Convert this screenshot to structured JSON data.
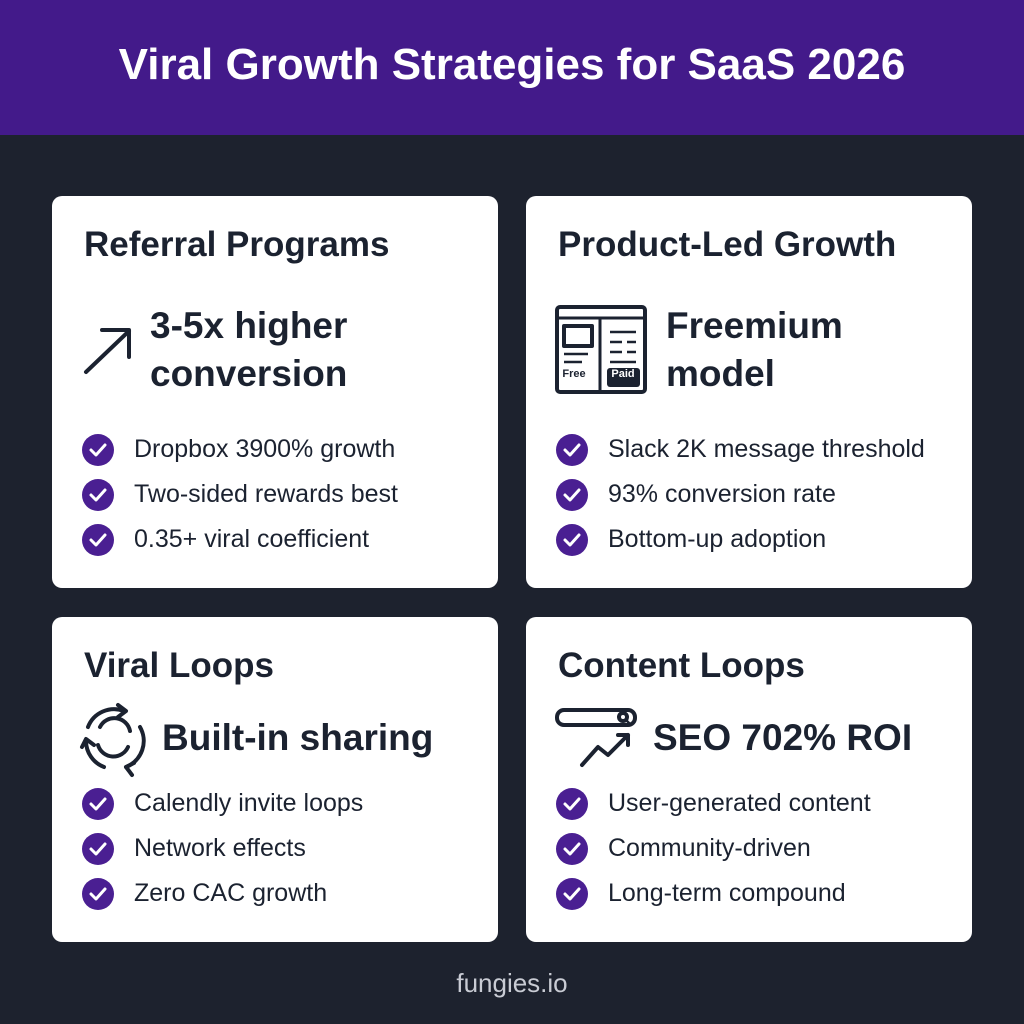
{
  "header": {
    "title": "Viral Growth Strategies for SaaS 2026"
  },
  "cards": [
    {
      "title": "Referral Programs",
      "headline": "3-5x higher conversion",
      "bullets": [
        "Dropbox 3900% growth",
        "Two-sided rewards best",
        "0.35+ viral coefficient"
      ]
    },
    {
      "title": "Product-Led Growth",
      "headline": "Freemium model",
      "icon_labels": [
        "Free",
        "Paid"
      ],
      "bullets": [
        "Slack 2K message threshold",
        "93% conversion rate",
        "Bottom-up adoption"
      ]
    },
    {
      "title": "Viral Loops",
      "headline": "Built-in sharing",
      "bullets": [
        "Calendly invite loops",
        "Network effects",
        "Zero CAC growth"
      ]
    },
    {
      "title": "Content Loops",
      "headline": "SEO 702% ROI",
      "bullets": [
        "User-generated content",
        "Community-driven",
        "Long-term compound"
      ]
    }
  ],
  "footer": "fungies.io"
}
